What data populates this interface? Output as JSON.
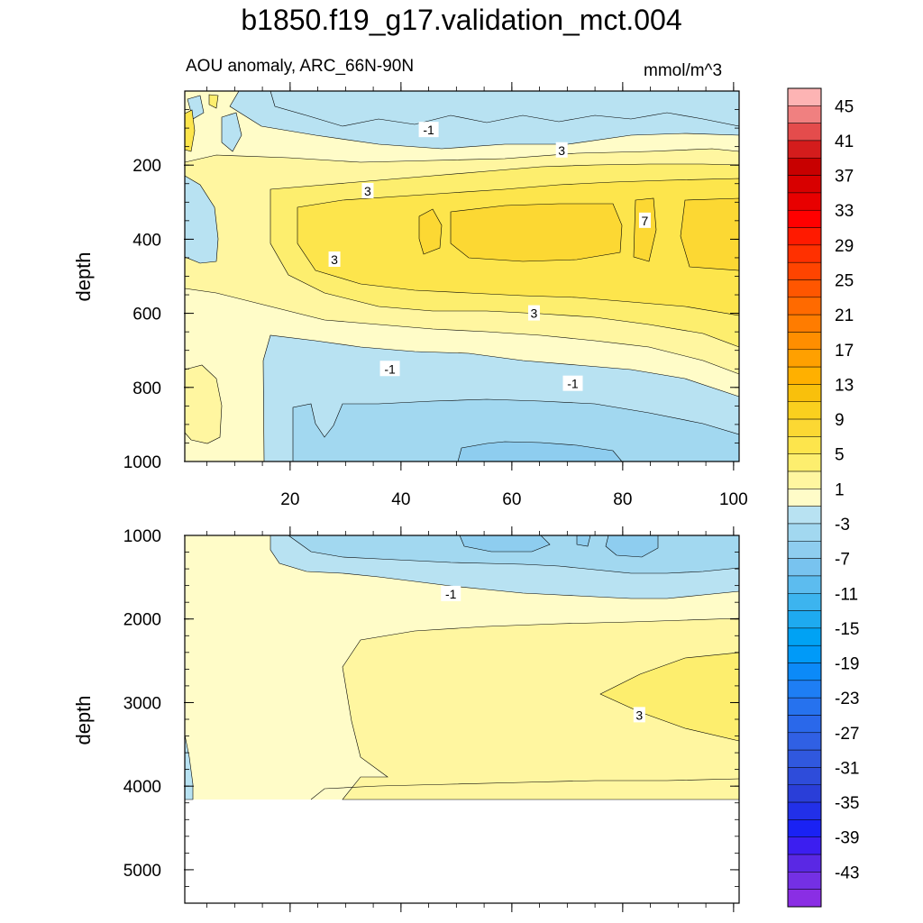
{
  "chart_data": {
    "type": "contour",
    "title": "b1850.f19_g17.validation_mct.004",
    "subtitle": "AOU anomaly, ARC_66N-90N",
    "units": "mmol/m^3",
    "xlabel": "",
    "xlim": [
      1,
      101
    ],
    "x_ticks": [
      20,
      40,
      60,
      80,
      100
    ],
    "colorbar": {
      "levels": [
        -45,
        -43,
        -41,
        -39,
        -37,
        -35,
        -33,
        -31,
        -29,
        -27,
        -25,
        -23,
        -21,
        -19,
        -17,
        -15,
        -13,
        -11,
        -9,
        -7,
        -5,
        -3,
        -1,
        1,
        3,
        5,
        7,
        9,
        11,
        13,
        15,
        17,
        19,
        21,
        23,
        25,
        27,
        29,
        31,
        33,
        35,
        37,
        39,
        41,
        43,
        45
      ],
      "labels": [
        "45",
        "41",
        "37",
        "33",
        "29",
        "25",
        "21",
        "17",
        "13",
        "9",
        "5",
        "1",
        "-3",
        "-7",
        "-11",
        "-15",
        "-19",
        "-23",
        "-27",
        "-31",
        "-35",
        "-39",
        "-43"
      ],
      "colors": [
        "#fdb4b4",
        "#f08080",
        "#e44c4c",
        "#d41c1c",
        "#c80000",
        "#d80000",
        "#e80000",
        "#ff0000",
        "#ff1a00",
        "#ff3000",
        "#ff4400",
        "#ff5600",
        "#ff6a00",
        "#ff7c00",
        "#ff8e00",
        "#ffa000",
        "#ffb000",
        "#f9c00c",
        "#fad01e",
        "#fcd833",
        "#fde54c",
        "#fdee6e",
        "#fff6a0",
        "#fffcc8",
        "#b8e2f2",
        "#a2d8f0",
        "#8ecdef",
        "#78c3ef",
        "#5cbcef",
        "#3cb4ef",
        "#1eaaf0",
        "#00a2f4",
        "#009af8",
        "#0c8af8",
        "#1e7ef4",
        "#2672ee",
        "#2a68ea",
        "#3060e4",
        "#3058de",
        "#2e4cda",
        "#2a3ed8",
        "#2230e8",
        "#1a22f4",
        "#3c1ef0",
        "#5a28e4",
        "#7430e4",
        "#8a2ee4"
      ]
    },
    "panels": [
      {
        "ylabel": "depth",
        "ylim": [
          1000,
          0
        ],
        "y_ticks": [
          200,
          400,
          600,
          800,
          1000
        ],
        "contour_labels": [
          {
            "text": "-1",
            "x": 45,
            "depth": 105
          },
          {
            "text": "3",
            "x": 69,
            "depth": 160
          },
          {
            "text": "3",
            "x": 34,
            "depth": 270
          },
          {
            "text": "7",
            "x": 84,
            "depth": 350
          },
          {
            "text": "3",
            "x": 28,
            "depth": 455
          },
          {
            "text": "3",
            "x": 64,
            "depth": 600
          },
          {
            "text": "-1",
            "x": 38,
            "depth": 750
          },
          {
            "text": "-1",
            "x": 71,
            "depth": 790
          }
        ]
      },
      {
        "ylabel": "depth",
        "ylim": [
          5400,
          1000
        ],
        "y_ticks": [
          1000,
          2000,
          3000,
          4000,
          5000
        ],
        "contour_labels": [
          {
            "text": "-1",
            "x": 49,
            "depth": 1700
          },
          {
            "text": "3",
            "x": 83,
            "depth": 3150
          }
        ]
      }
    ]
  }
}
